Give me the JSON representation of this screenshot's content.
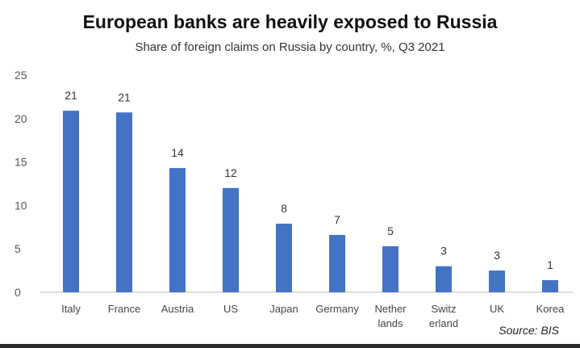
{
  "chart_data": {
    "type": "bar",
    "title": "European banks are heavily exposed to Russia",
    "subtitle": "Share of foreign claims on Russia by country, %, Q3 2021",
    "source": "Source: BIS",
    "categories": [
      [
        "Italy"
      ],
      [
        "France"
      ],
      [
        "Austria"
      ],
      [
        "US"
      ],
      [
        "Japan"
      ],
      [
        "Germany"
      ],
      [
        "Nether",
        "lands"
      ],
      [
        "Switz",
        "erland"
      ],
      [
        "UK"
      ],
      [
        "Korea"
      ]
    ],
    "values": [
      20.9,
      20.7,
      14.3,
      12,
      7.9,
      6.6,
      5.3,
      3,
      2.5,
      1.4
    ],
    "data_labels": [
      "21",
      "21",
      "14",
      "12",
      "8",
      "7",
      "5",
      "3",
      "3",
      "1"
    ],
    "ylim": [
      0,
      25
    ],
    "yticks": [
      0,
      5,
      10,
      15,
      20,
      25
    ],
    "grid": false,
    "bar_color": "#4472c4"
  }
}
